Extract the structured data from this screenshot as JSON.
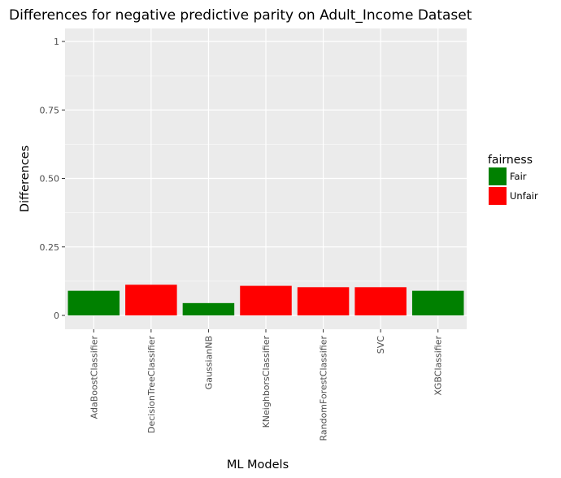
{
  "chart_data": {
    "type": "bar",
    "title": "Differences for negative predictive parity on Adult_Income Dataset",
    "xlabel": "ML Models",
    "ylabel": "Differences",
    "ylim": [
      0,
      1
    ],
    "yticks": [
      0,
      0.25,
      0.5,
      0.75,
      1
    ],
    "ytick_labels": [
      "0",
      "0.25",
      "0.50",
      "0.75",
      "1"
    ],
    "grid": true,
    "categories": [
      "AdaBoostClassifier",
      "DecisionTreeClassifier",
      "GaussianNB",
      "KNeighborsClassifier",
      "RandomForestClassifier",
      "SVC",
      "XGBClassifier"
    ],
    "values": [
      0.09,
      0.112,
      0.045,
      0.108,
      0.103,
      0.103,
      0.09
    ],
    "fairness": [
      "Fair",
      "Unfair",
      "Fair",
      "Unfair",
      "Unfair",
      "Unfair",
      "Fair"
    ],
    "legend": {
      "title": "fairness",
      "position": "right",
      "entries": [
        {
          "label": "Fair",
          "color": "#008000"
        },
        {
          "label": "Unfair",
          "color": "#ff0000"
        }
      ]
    }
  }
}
